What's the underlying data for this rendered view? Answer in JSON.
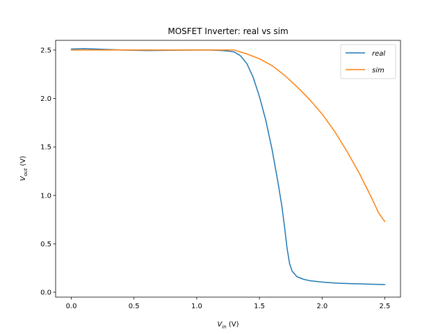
{
  "chart_data": {
    "type": "line",
    "title": "MOSFET Inverter: real vs sim",
    "xlabel": {
      "main": "V",
      "sub": "in",
      "unit": " (V)"
    },
    "ylabel": {
      "main": "V",
      "sub": "out",
      "unit": " (V)"
    },
    "xlim": [
      -0.125,
      2.625
    ],
    "ylim": [
      -0.05,
      2.6
    ],
    "xticks": [
      0.0,
      0.5,
      1.0,
      1.5,
      2.0,
      2.5
    ],
    "xtick_labels": [
      "0.0",
      "0.5",
      "1.0",
      "1.5",
      "2.0",
      "2.5"
    ],
    "yticks": [
      0.0,
      0.5,
      1.0,
      1.5,
      2.0,
      2.5
    ],
    "ytick_labels": [
      "0.0",
      "0.5",
      "1.0",
      "1.5",
      "2.0",
      "2.5"
    ],
    "grid": false,
    "legend_position": "top-right",
    "series": [
      {
        "name": "real",
        "color": "#1f77b4",
        "x": [
          0.0,
          0.1,
          0.2,
          0.4,
          0.6,
          0.8,
          1.0,
          1.1,
          1.2,
          1.25,
          1.3,
          1.35,
          1.4,
          1.45,
          1.5,
          1.55,
          1.6,
          1.65,
          1.68,
          1.7,
          1.72,
          1.74,
          1.76,
          1.8,
          1.85,
          1.9,
          2.0,
          2.1,
          2.2,
          2.3,
          2.4,
          2.5
        ],
        "y": [
          2.51,
          2.515,
          2.51,
          2.5,
          2.495,
          2.498,
          2.5,
          2.5,
          2.495,
          2.49,
          2.48,
          2.44,
          2.36,
          2.22,
          2.02,
          1.78,
          1.48,
          1.12,
          0.88,
          0.68,
          0.46,
          0.3,
          0.22,
          0.16,
          0.135,
          0.12,
          0.105,
          0.095,
          0.09,
          0.087,
          0.083,
          0.08
        ]
      },
      {
        "name": "sim",
        "color": "#ff7f0e",
        "x": [
          0.0,
          0.2,
          0.4,
          0.6,
          0.8,
          1.0,
          1.1,
          1.2,
          1.3,
          1.4,
          1.5,
          1.6,
          1.7,
          1.8,
          1.9,
          2.0,
          2.1,
          2.2,
          2.3,
          2.35,
          2.4,
          2.45,
          2.5
        ],
        "y": [
          2.5,
          2.5,
          2.5,
          2.5,
          2.5,
          2.5,
          2.5,
          2.5,
          2.5,
          2.46,
          2.41,
          2.34,
          2.24,
          2.12,
          1.99,
          1.84,
          1.66,
          1.45,
          1.22,
          1.09,
          0.96,
          0.82,
          0.73
        ]
      }
    ]
  }
}
